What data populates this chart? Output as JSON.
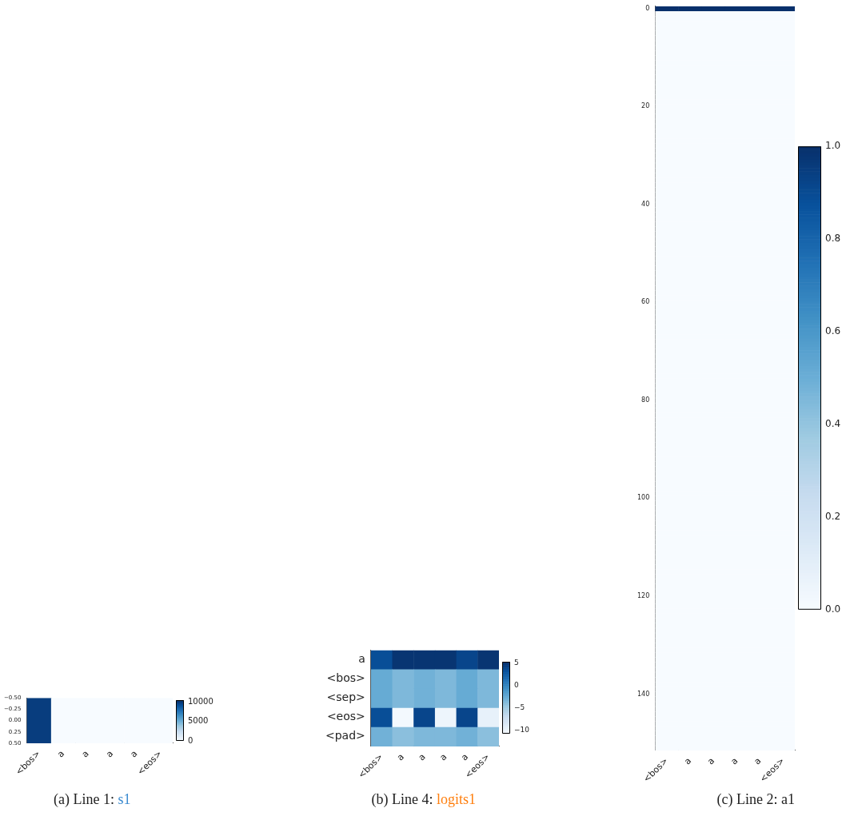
{
  "chart_data": [
    {
      "type": "heatmap",
      "title": "(a) Line 1: s1",
      "categories": [
        "<bos>",
        "a",
        "a",
        "a",
        "a",
        "<eos>"
      ],
      "ylim": [
        0.5,
        -0.5
      ],
      "yticks": [
        {
          "value": -0.5,
          "label": "−0.50"
        },
        {
          "value": -0.25,
          "label": "−0.25"
        },
        {
          "value": 0,
          "label": "0.00"
        },
        {
          "value": 0.25,
          "label": "0.25"
        },
        {
          "value": 0.5,
          "label": "0.50"
        }
      ],
      "cells": [
        [
          10000,
          0,
          0,
          0,
          0,
          0
        ]
      ],
      "clim": [
        0,
        10500
      ],
      "cticks": [
        0,
        5000,
        10000
      ]
    },
    {
      "type": "heatmap",
      "title": "(b) Line 4: logits1",
      "categories": [
        "<bos>",
        "a",
        "a",
        "a",
        "a",
        "<eos>"
      ],
      "y_categories": [
        "a",
        "<bos>",
        "<sep>",
        "<eos>",
        "<pad>"
      ],
      "cells": [
        [
          3.5,
          5,
          5,
          5,
          4,
          5
        ],
        [
          -2.5,
          -3.5,
          -3,
          -3.5,
          -2.5,
          -3.5
        ],
        [
          -2.5,
          -3.5,
          -3,
          -3.5,
          -2.5,
          -3.5
        ],
        [
          3.5,
          -10.5,
          4,
          -10,
          4,
          -9.5
        ],
        [
          -3,
          -4,
          -3.5,
          -3.5,
          -3,
          -4
        ]
      ],
      "clim": [
        -10.8,
        5.3
      ],
      "cticks": [
        {
          "value": 5,
          "label": "5"
        },
        {
          "value": 0,
          "label": "0"
        },
        {
          "value": -5,
          "label": "−5"
        },
        {
          "value": -10,
          "label": "−10"
        }
      ]
    },
    {
      "type": "heatmap",
      "title": "(c) Line 2: a1",
      "categories": [
        "<bos>",
        "a",
        "a",
        "a",
        "a",
        "<eos>"
      ],
      "ylim": [
        151.5,
        -0.5
      ],
      "yticks": [
        0,
        20,
        40,
        60,
        80,
        100,
        120,
        140
      ],
      "cells": [
        [
          1,
          1,
          1,
          1,
          1,
          1
        ],
        [
          0,
          0,
          0,
          0,
          0,
          0
        ],
        [
          0,
          0,
          0,
          0,
          0,
          0
        ],
        [
          0,
          0,
          0,
          0,
          0,
          0
        ],
        [
          0,
          0,
          0,
          0,
          0,
          0
        ],
        [
          0,
          0,
          0,
          0,
          0,
          0
        ],
        [
          0,
          0,
          0,
          0,
          0,
          0
        ],
        [
          0,
          0,
          0,
          0,
          0,
          0
        ],
        [
          0,
          0,
          0,
          0,
          0,
          0
        ],
        [
          0,
          0,
          0,
          0,
          0,
          0
        ],
        [
          0,
          0,
          0,
          0,
          0,
          0
        ],
        [
          0,
          0,
          0,
          0,
          0,
          0
        ],
        [
          0,
          0,
          0,
          0,
          0,
          0
        ],
        [
          0,
          0,
          0,
          0,
          0,
          0
        ],
        [
          0,
          0,
          0,
          0,
          0,
          0
        ],
        [
          0,
          0,
          0,
          0,
          0,
          0
        ],
        [
          0,
          0,
          0,
          0,
          0,
          0
        ],
        [
          0,
          0,
          0,
          0,
          0,
          0
        ],
        [
          0,
          0,
          0,
          0,
          0,
          0
        ],
        [
          0,
          0,
          0,
          0,
          0,
          0
        ],
        [
          0,
          0,
          0,
          0,
          0,
          0
        ],
        [
          0,
          0,
          0,
          0,
          0,
          0
        ],
        [
          0,
          0,
          0,
          0,
          0,
          0
        ],
        [
          0,
          0,
          0,
          0,
          0,
          0
        ],
        [
          0,
          0,
          0,
          0,
          0,
          0
        ],
        [
          0,
          0,
          0,
          0,
          0,
          0
        ],
        [
          0,
          0,
          0,
          0,
          0,
          0
        ],
        [
          0,
          0,
          0,
          0,
          0,
          0
        ],
        [
          0,
          0,
          0,
          0,
          0,
          0
        ],
        [
          0,
          0,
          0,
          0,
          0,
          0
        ],
        [
          0,
          0,
          0,
          0,
          0,
          0
        ],
        [
          0,
          0,
          0,
          0,
          0,
          0
        ],
        [
          0,
          0,
          0,
          0,
          0,
          0
        ],
        [
          0,
          0,
          0,
          0,
          0,
          0
        ],
        [
          0,
          0,
          0,
          0,
          0,
          0
        ],
        [
          0,
          0,
          0,
          0,
          0,
          0
        ],
        [
          0,
          0,
          0,
          0,
          0,
          0
        ],
        [
          0,
          0,
          0,
          0,
          0,
          0
        ],
        [
          0,
          0,
          0,
          0,
          0,
          0
        ],
        [
          0,
          0,
          0,
          0,
          0,
          0
        ],
        [
          0,
          0,
          0,
          0,
          0,
          0
        ],
        [
          0,
          0,
          0,
          0,
          0,
          0
        ],
        [
          0,
          0,
          0,
          0,
          0,
          0
        ],
        [
          0,
          0,
          0,
          0,
          0,
          0
        ],
        [
          0,
          0,
          0,
          0,
          0,
          0
        ],
        [
          0,
          0,
          0,
          0,
          0,
          0
        ],
        [
          0,
          0,
          0,
          0,
          0,
          0
        ],
        [
          0,
          0,
          0,
          0,
          0,
          0
        ],
        [
          0,
          0,
          0,
          0,
          0,
          0
        ],
        [
          0,
          0,
          0,
          0,
          0,
          0
        ],
        [
          0,
          0,
          0,
          0,
          0,
          0
        ],
        [
          0,
          0,
          0,
          0,
          0,
          0
        ],
        [
          0,
          0,
          0,
          0,
          0,
          0
        ],
        [
          0,
          0,
          0,
          0,
          0,
          0
        ],
        [
          0,
          0,
          0,
          0,
          0,
          0
        ],
        [
          0,
          0,
          0,
          0,
          0,
          0
        ],
        [
          0,
          0,
          0,
          0,
          0,
          0
        ],
        [
          0,
          0,
          0,
          0,
          0,
          0
        ],
        [
          0,
          0,
          0,
          0,
          0,
          0
        ],
        [
          0,
          0,
          0,
          0,
          0,
          0
        ],
        [
          0,
          0,
          0,
          0,
          0,
          0
        ],
        [
          0,
          0,
          0,
          0,
          0,
          0
        ],
        [
          0,
          0,
          0,
          0,
          0,
          0
        ],
        [
          0,
          0,
          0,
          0,
          0,
          0
        ],
        [
          0,
          0,
          0,
          0,
          0,
          0
        ],
        [
          0,
          0,
          0,
          0,
          0,
          0
        ],
        [
          0,
          0,
          0,
          0,
          0,
          0
        ],
        [
          0,
          0,
          0,
          0,
          0,
          0
        ],
        [
          0,
          0,
          0,
          0,
          0,
          0
        ],
        [
          0,
          0,
          0,
          0,
          0,
          0
        ],
        [
          0,
          0,
          0,
          0,
          0,
          0
        ],
        [
          0,
          0,
          0,
          0,
          0,
          0
        ],
        [
          0,
          0,
          0,
          0,
          0,
          0
        ],
        [
          0,
          0,
          0,
          0,
          0,
          0
        ],
        [
          0,
          0,
          0,
          0,
          0,
          0
        ],
        [
          0,
          0,
          0,
          0,
          0,
          0
        ],
        [
          0,
          0,
          0,
          0,
          0,
          0
        ],
        [
          0,
          0,
          0,
          0,
          0,
          0
        ],
        [
          0,
          0,
          0,
          0,
          0,
          0
        ],
        [
          0,
          0,
          0,
          0,
          0,
          0
        ],
        [
          0,
          0,
          0,
          0,
          0,
          0
        ],
        [
          0,
          0,
          0,
          0,
          0,
          0
        ],
        [
          0,
          0,
          0,
          0,
          0,
          0
        ],
        [
          0,
          0,
          0,
          0,
          0,
          0
        ],
        [
          0,
          0,
          0,
          0,
          0,
          0
        ],
        [
          0,
          0,
          0,
          0,
          0,
          0
        ],
        [
          0,
          0,
          0,
          0,
          0,
          0
        ],
        [
          0,
          0,
          0,
          0,
          0,
          0
        ],
        [
          0,
          0,
          0,
          0,
          0,
          0
        ],
        [
          0,
          0,
          0,
          0,
          0,
          0
        ],
        [
          0,
          0,
          0,
          0,
          0,
          0
        ],
        [
          0,
          0,
          0,
          0,
          0,
          0
        ],
        [
          0,
          0,
          0,
          0,
          0,
          0
        ],
        [
          0,
          0,
          0,
          0,
          0,
          0
        ],
        [
          0,
          0,
          0,
          0,
          0,
          0
        ],
        [
          0,
          0,
          0,
          0,
          0,
          0
        ],
        [
          0,
          0,
          0,
          0,
          0,
          0
        ],
        [
          0,
          0,
          0,
          0,
          0,
          0
        ],
        [
          0,
          0,
          0,
          0,
          0,
          0
        ],
        [
          0,
          0,
          0,
          0,
          0,
          0
        ],
        [
          0,
          0,
          0,
          0,
          0,
          0
        ],
        [
          0,
          0,
          0,
          0,
          0,
          0
        ],
        [
          0,
          0,
          0,
          0,
          0,
          0
        ],
        [
          0,
          0,
          0,
          0,
          0,
          0
        ],
        [
          0,
          0,
          0,
          0,
          0,
          0
        ],
        [
          0,
          0,
          0,
          0,
          0,
          0
        ],
        [
          0,
          0,
          0,
          0,
          0,
          0
        ],
        [
          0,
          0,
          0,
          0,
          0,
          0
        ],
        [
          0,
          0,
          0,
          0,
          0,
          0
        ],
        [
          0,
          0,
          0,
          0,
          0,
          0
        ],
        [
          0,
          0,
          0,
          0,
          0,
          0
        ],
        [
          0,
          0,
          0,
          0,
          0,
          0
        ],
        [
          0,
          0,
          0,
          0,
          0,
          0
        ],
        [
          0,
          0,
          0,
          0,
          0,
          0
        ],
        [
          0,
          0,
          0,
          0,
          0,
          0
        ],
        [
          0,
          0,
          0,
          0,
          0,
          0
        ],
        [
          0,
          0,
          0,
          0,
          0,
          0
        ],
        [
          0,
          0,
          0,
          0,
          0,
          0
        ],
        [
          0,
          0,
          0,
          0,
          0,
          0
        ],
        [
          0,
          0,
          0,
          0,
          0,
          0
        ],
        [
          0,
          0,
          0,
          0,
          0,
          0
        ],
        [
          0,
          0,
          0,
          0,
          0,
          0
        ],
        [
          0,
          0,
          0,
          0,
          0,
          0
        ],
        [
          0,
          0,
          0,
          0,
          0,
          0
        ],
        [
          0,
          0,
          0,
          0,
          0,
          0
        ],
        [
          0,
          0,
          0,
          0,
          0,
          0
        ],
        [
          0,
          0,
          0,
          0,
          0,
          0
        ],
        [
          0,
          0,
          0,
          0,
          0,
          0
        ],
        [
          0,
          0,
          0,
          0,
          0,
          0
        ],
        [
          0,
          0,
          0,
          0,
          0,
          0
        ],
        [
          0,
          0,
          0,
          0,
          0,
          0
        ],
        [
          0,
          0,
          0,
          0,
          0,
          0
        ],
        [
          0,
          0,
          0,
          0,
          0,
          0
        ],
        [
          0,
          0,
          0,
          0,
          0,
          0
        ],
        [
          0,
          0,
          0,
          0,
          0,
          0
        ],
        [
          0,
          0,
          0,
          0,
          0,
          0
        ],
        [
          0,
          0,
          0,
          0,
          0,
          0
        ],
        [
          0,
          0,
          0,
          0,
          0,
          0
        ],
        [
          0,
          0,
          0,
          0,
          0,
          0
        ],
        [
          0,
          0,
          0,
          0,
          0,
          0
        ],
        [
          0,
          0,
          0,
          0,
          0,
          0
        ],
        [
          0,
          0,
          0,
          0,
          0,
          0
        ],
        [
          0,
          0,
          0,
          0,
          0,
          0
        ],
        [
          0,
          0,
          0,
          0,
          0,
          0
        ],
        [
          0,
          0,
          0,
          0,
          0,
          0
        ],
        [
          0,
          0,
          0,
          0,
          0,
          0
        ],
        [
          0,
          0,
          0,
          0,
          0,
          0
        ],
        [
          0,
          0,
          0,
          0,
          0,
          0
        ],
        [
          0,
          0,
          0,
          0,
          0,
          0
        ],
        [
          0,
          0,
          0,
          0,
          0,
          0
        ],
        [
          0,
          0,
          0,
          0,
          0,
          0
        ],
        [
          0,
          0,
          0,
          0,
          0,
          0
        ]
      ],
      "clim": [
        0,
        1
      ],
      "cticks": [
        {
          "value": 0,
          "label": "0.0"
        },
        {
          "value": 0.2,
          "label": "0.2"
        },
        {
          "value": 0.4,
          "label": "0.4"
        },
        {
          "value": 0.6,
          "label": "0.6"
        },
        {
          "value": 0.8,
          "label": "0.8"
        },
        {
          "value": 1,
          "label": "1.0"
        }
      ]
    }
  ]
}
